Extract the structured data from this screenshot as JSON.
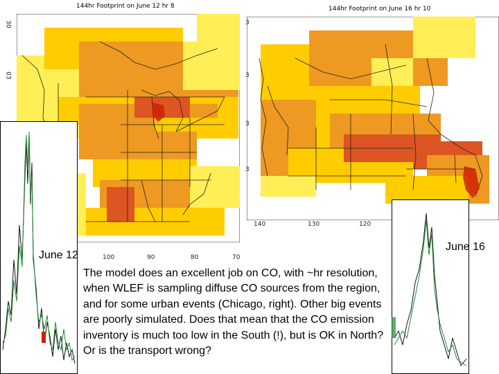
{
  "slide": {
    "left_map_title": "144hr Footprint on June 12 hr 8",
    "right_map_title": "144hr Footprint on June 16 hr 10",
    "left_map_yticks": [
      "30",
      "03"
    ],
    "left_map_xticks": [
      "100",
      "90",
      "80",
      "70"
    ],
    "right_map_yticks": [
      "3",
      "3",
      "3",
      "3"
    ],
    "right_map_xticks": [
      "140",
      "130",
      "120"
    ],
    "label_left": "June 12",
    "label_right": "June 16",
    "caption": "The model does an excellent job on CO, with ~hr resolution, when WLEF is sampling diffuse CO sources from the region, and for some urban events (Chicago, right). Other big events are poorly simulated. Does that mean that the CO emission inventory is much too low in the South (!), but is OK in North? Or is the transport wrong?"
  },
  "colors": {
    "footprint_low": "#ffee55",
    "footprint_mid": "#ffcc00",
    "footprint_high": "#ee9922",
    "footprint_peak": "#dd5522",
    "hotspot": "#cc2200",
    "model_line": "#228833",
    "obs_line": "#111111"
  }
}
